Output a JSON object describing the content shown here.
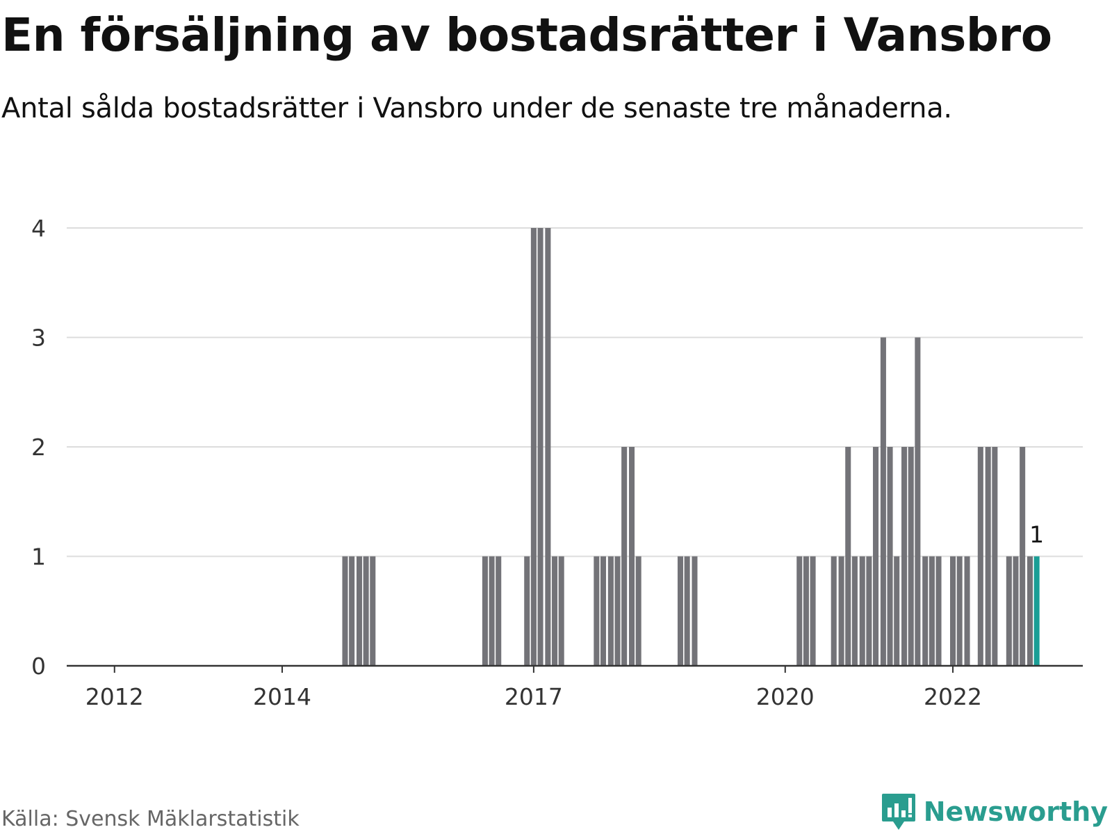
{
  "title": "En försäljning av bostadsrätter i Vansbro",
  "subtitle": "Antal sålda bostadsrätter i Vansbro under de senaste tre månaderna.",
  "source": "Källa: Svensk Mäklarstatistik",
  "brand": {
    "name": "Newsworthy",
    "icon": "newsworthy-logo-icon",
    "color": "#2a9d8f"
  },
  "colors": {
    "bar": "#737378",
    "highlight": "#1a9e96",
    "grid": "#dcdcdc",
    "axis": "#333333",
    "tick_text": "#333333"
  },
  "chart_data": {
    "type": "bar",
    "title": "En försäljning av bostadsrätter i Vansbro",
    "subtitle": "Antal sålda bostadsrätter i Vansbro under de senaste tre månaderna.",
    "xlabel": "",
    "ylabel": "",
    "ylim": [
      0,
      4
    ],
    "y_ticks": [
      "0",
      "1",
      "2",
      "3",
      "4"
    ],
    "x_range": [
      2011.43,
      2023.55
    ],
    "x_ticks": [
      {
        "label": "2012",
        "x": 2012.0
      },
      {
        "label": "2014",
        "x": 2014.0
      },
      {
        "label": "2017",
        "x": 2017.0
      },
      {
        "label": "2020",
        "x": 2020.0
      },
      {
        "label": "2022",
        "x": 2022.0
      }
    ],
    "grid": true,
    "legend": "none",
    "x": [
      2014.75,
      2014.83,
      2014.92,
      2015.0,
      2015.08,
      2016.42,
      2016.5,
      2016.58,
      2016.92,
      2017.0,
      2017.08,
      2017.17,
      2017.25,
      2017.33,
      2017.75,
      2017.83,
      2017.92,
      2018.0,
      2018.08,
      2018.17,
      2018.25,
      2018.75,
      2018.83,
      2018.92,
      2020.17,
      2020.25,
      2020.33,
      2020.58,
      2020.67,
      2020.75,
      2020.83,
      2020.92,
      2021.0,
      2021.08,
      2021.17,
      2021.25,
      2021.33,
      2021.42,
      2021.5,
      2021.58,
      2021.67,
      2021.75,
      2021.83,
      2022.0,
      2022.08,
      2022.17,
      2022.33,
      2022.42,
      2022.5,
      2022.67,
      2022.75,
      2022.83,
      2022.92,
      2023.0
    ],
    "values": [
      1,
      1,
      1,
      1,
      1,
      1,
      1,
      1,
      1,
      4,
      4,
      4,
      1,
      1,
      1,
      1,
      1,
      1,
      2,
      2,
      1,
      1,
      1,
      1,
      1,
      1,
      1,
      1,
      1,
      2,
      1,
      1,
      1,
      2,
      3,
      2,
      1,
      2,
      2,
      3,
      1,
      1,
      1,
      1,
      1,
      1,
      2,
      2,
      2,
      1,
      1,
      2,
      1,
      1
    ],
    "highlight_index": 53,
    "annotations": [
      {
        "text": "1",
        "x": 2023.0,
        "y": 1
      }
    ]
  }
}
